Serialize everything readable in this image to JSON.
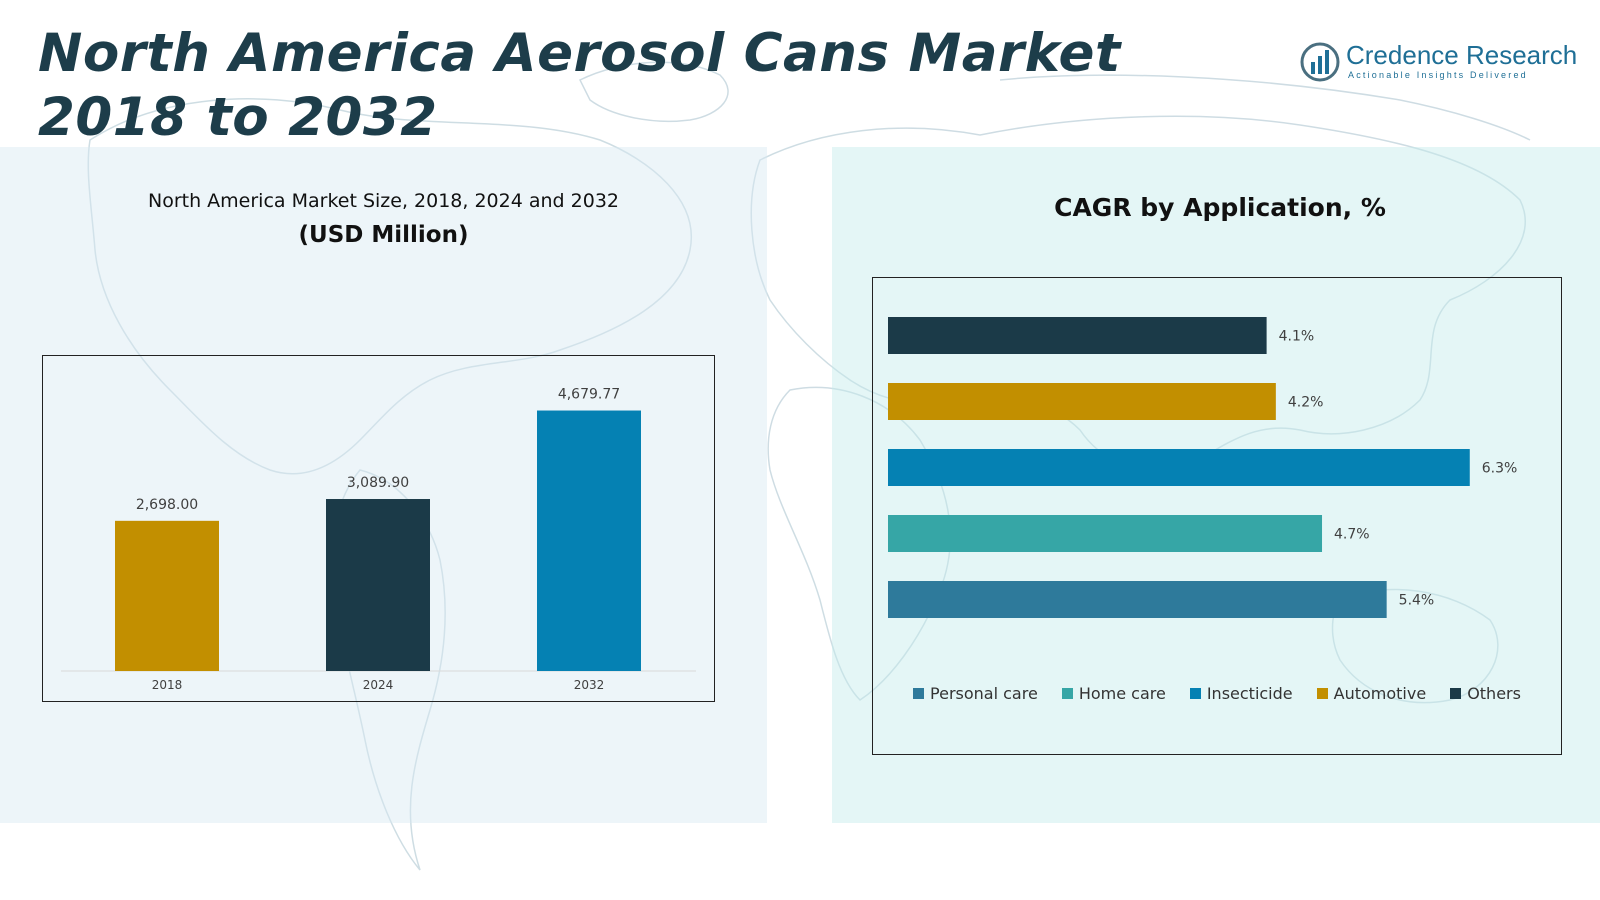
{
  "page": {
    "title": "North America Aerosol Cans Market 2018 to 2032"
  },
  "brand": {
    "name": "Credence Research",
    "tagline": "Actionable Insights Delivered",
    "color": "#1f6f96"
  },
  "colors": {
    "background_map": "#c9d9e0",
    "panel_left": "#d6e8f2",
    "panel_right": "#c4ebeb"
  },
  "chart_data": [
    {
      "type": "bar",
      "title": "North America Market Size, 2018, 2024 and 2032",
      "subtitle": "(USD Million)",
      "categories": [
        "2018",
        "2024",
        "2032"
      ],
      "values": [
        2698.0,
        3089.9,
        4679.77
      ],
      "value_labels": [
        "2,698.00",
        "3,089.90",
        "4,679.77"
      ],
      "colors": [
        "#c28f00",
        "#1b3a48",
        "#0581b3"
      ],
      "ylim": [
        0,
        5300
      ],
      "grid": false,
      "legend": "none"
    },
    {
      "type": "bar",
      "orientation": "horizontal",
      "title": "CAGR by Application, %",
      "categories": [
        "Others",
        "Automotive",
        "Insecticide",
        "Home care",
        "Personal care"
      ],
      "values": [
        4.1,
        4.2,
        6.3,
        4.7,
        5.4
      ],
      "value_labels": [
        "4.1%",
        "4.2%",
        "6.3%",
        "4.7%",
        "5.4%"
      ],
      "colors": [
        "#1b3a48",
        "#c28f00",
        "#0581b3",
        "#36a6a6",
        "#2e7a9b"
      ],
      "xlim": [
        0,
        6.4
      ],
      "grid": false,
      "legend": "bottom",
      "legend_entries": [
        {
          "label": "Personal care",
          "color": "#2e7a9b"
        },
        {
          "label": "Home care",
          "color": "#36a6a6"
        },
        {
          "label": "Insecticide",
          "color": "#0581b3"
        },
        {
          "label": "Automotive",
          "color": "#c28f00"
        },
        {
          "label": "Others",
          "color": "#1b3a48"
        }
      ]
    }
  ]
}
